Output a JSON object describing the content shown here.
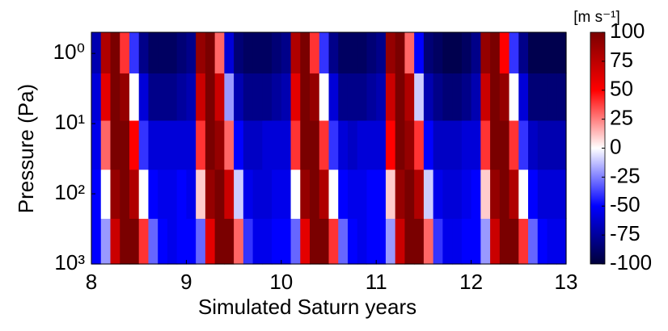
{
  "chart_data": {
    "type": "heatmap",
    "xlabel": "Simulated Saturn years",
    "ylabel": "Pressure (Pa)",
    "colorbar_label": "[m s⁻¹]",
    "xlim": [
      8,
      13
    ],
    "xticks": [
      8,
      9,
      10,
      11,
      12,
      13
    ],
    "ylim": [
      1000,
      0.5
    ],
    "log_y": true,
    "yticks": [
      {
        "value": 1,
        "label": "10⁰"
      },
      {
        "value": 10,
        "label": "10¹"
      },
      {
        "value": 100,
        "label": "10²"
      },
      {
        "value": 1000,
        "label": "10³"
      }
    ],
    "zlim": [
      -100,
      100
    ],
    "zticks": [
      100,
      75,
      50,
      25,
      0,
      -25,
      -50,
      -75,
      -100
    ],
    "colors": [
      "#00003a",
      "#0000ff",
      "#ffffff",
      "#ff0000",
      "#7a0000"
    ],
    "x": [
      8.05,
      8.15,
      8.25,
      8.35,
      8.45,
      8.55,
      8.65,
      8.75,
      8.85,
      8.95,
      9.05,
      9.15,
      9.25,
      9.35,
      9.45,
      9.55,
      9.65,
      9.75,
      9.85,
      9.95,
      10.05,
      10.15,
      10.25,
      10.35,
      10.45,
      10.55,
      10.65,
      10.75,
      10.85,
      10.95,
      11.05,
      11.15,
      11.25,
      11.35,
      11.45,
      11.55,
      11.65,
      11.75,
      11.85,
      11.95,
      12.05,
      12.15,
      12.25,
      12.35,
      12.45,
      12.55,
      12.65,
      12.75,
      12.85,
      12.95
    ],
    "y": [
      500,
      100,
      20,
      4,
      0.9
    ],
    "z": [
      [
        -50,
        -20,
        70,
        100,
        100,
        40,
        -30,
        -50,
        -55,
        -50,
        -50,
        -30,
        60,
        100,
        100,
        30,
        -40,
        -55,
        -55,
        -50,
        -50,
        -30,
        60,
        100,
        100,
        40,
        -30,
        -50,
        -55,
        -50,
        -50,
        -20,
        70,
        100,
        100,
        30,
        -40,
        -55,
        -55,
        -50,
        -50,
        -20,
        70,
        100,
        100,
        40,
        -30,
        -50,
        -55,
        -55
      ],
      [
        -50,
        0,
        90,
        100,
        80,
        0,
        -50,
        -55,
        -55,
        -50,
        -55,
        10,
        90,
        100,
        70,
        -10,
        -55,
        -60,
        -60,
        -55,
        -55,
        0,
        90,
        100,
        80,
        0,
        -50,
        -55,
        -55,
        -50,
        -50,
        10,
        90,
        100,
        80,
        -10,
        -55,
        -60,
        -60,
        -55,
        -50,
        10,
        90,
        100,
        80,
        0,
        -50,
        -60,
        -60,
        -60
      ],
      [
        -55,
        30,
        100,
        100,
        50,
        -40,
        -60,
        -60,
        -60,
        -60,
        -60,
        40,
        100,
        90,
        30,
        -50,
        -65,
        -65,
        -60,
        -60,
        -60,
        40,
        100,
        100,
        40,
        -40,
        -60,
        -65,
        -60,
        -60,
        -60,
        50,
        100,
        90,
        40,
        -50,
        -65,
        -65,
        -65,
        -60,
        -60,
        40,
        100,
        100,
        40,
        -40,
        -65,
        -70,
        -70,
        -70
      ],
      [
        -60,
        60,
        100,
        90,
        0,
        -60,
        -80,
        -80,
        -80,
        -75,
        -70,
        70,
        100,
        70,
        -20,
        -70,
        -80,
        -80,
        -80,
        -75,
        -70,
        60,
        100,
        90,
        0,
        -60,
        -80,
        -80,
        -80,
        -75,
        -70,
        70,
        100,
        80,
        -10,
        -70,
        -80,
        -85,
        -85,
        -80,
        -70,
        70,
        100,
        90,
        0,
        -60,
        -85,
        -85,
        -85,
        -85
      ],
      [
        -70,
        80,
        100,
        40,
        -40,
        -80,
        -90,
        -90,
        -90,
        -85,
        -80,
        90,
        100,
        30,
        -60,
        -85,
        -90,
        -90,
        -90,
        -85,
        -80,
        80,
        100,
        40,
        -40,
        -80,
        -90,
        -90,
        -90,
        -85,
        -80,
        90,
        100,
        30,
        -50,
        -85,
        -90,
        -95,
        -95,
        -90,
        -80,
        90,
        100,
        50,
        -40,
        -80,
        -95,
        -95,
        -95,
        -95
      ]
    ]
  }
}
